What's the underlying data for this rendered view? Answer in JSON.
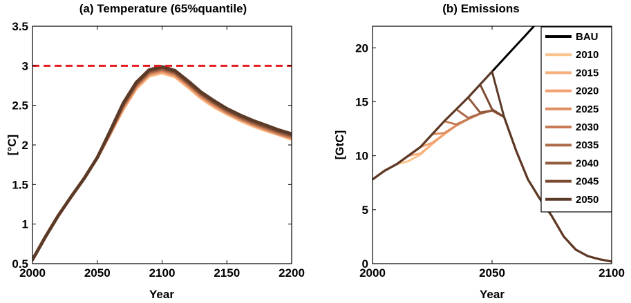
{
  "chart_data": [
    {
      "type": "line",
      "title": "(a) Temperature (65%quantile)",
      "xlabel": "Year",
      "ylabel": "[°C]",
      "xlim": [
        2000,
        2200
      ],
      "ylim": [
        0.5,
        3.5
      ],
      "xticks": [
        "2000",
        "2050",
        "2100",
        "2150",
        "2200"
      ],
      "yticks": [
        "0.5",
        "1",
        "1.5",
        "2",
        "2.5",
        "3",
        "3.5"
      ],
      "grid": false,
      "reference_line": {
        "y": 3,
        "color": "#e8191c",
        "style": "dashed"
      },
      "series": [
        {
          "color": "#fbc48f",
          "x": [
            2000,
            2010,
            2020,
            2030,
            2040,
            2050,
            2060,
            2070,
            2080,
            2090,
            2100,
            2110,
            2120,
            2130,
            2140,
            2150,
            2160,
            2170,
            2180,
            2190,
            2200
          ],
          "y": [
            0.55,
            0.84,
            1.11,
            1.35,
            1.58,
            1.84,
            2.14,
            2.45,
            2.71,
            2.87,
            2.91,
            2.86,
            2.73,
            2.59,
            2.48,
            2.39,
            2.31,
            2.24,
            2.18,
            2.13,
            2.07
          ]
        },
        {
          "color": "#f8b07f",
          "x": [
            2000,
            2010,
            2020,
            2030,
            2040,
            2050,
            2060,
            2070,
            2080,
            2090,
            2100,
            2110,
            2120,
            2130,
            2140,
            2150,
            2160,
            2170,
            2180,
            2190,
            2200
          ],
          "y": [
            0.55,
            0.84,
            1.11,
            1.35,
            1.58,
            1.84,
            2.14,
            2.46,
            2.72,
            2.88,
            2.92,
            2.87,
            2.74,
            2.6,
            2.49,
            2.4,
            2.32,
            2.25,
            2.19,
            2.13,
            2.08
          ]
        },
        {
          "color": "#f4a070",
          "x": [
            2000,
            2010,
            2020,
            2030,
            2040,
            2050,
            2060,
            2070,
            2080,
            2090,
            2100,
            2110,
            2120,
            2130,
            2140,
            2150,
            2160,
            2170,
            2180,
            2190,
            2200
          ],
          "y": [
            0.55,
            0.84,
            1.11,
            1.35,
            1.58,
            1.84,
            2.15,
            2.47,
            2.73,
            2.89,
            2.93,
            2.88,
            2.75,
            2.61,
            2.5,
            2.41,
            2.33,
            2.26,
            2.2,
            2.14,
            2.09
          ]
        },
        {
          "color": "#de8e62",
          "x": [
            2000,
            2010,
            2020,
            2030,
            2040,
            2050,
            2060,
            2070,
            2080,
            2090,
            2100,
            2110,
            2120,
            2130,
            2140,
            2150,
            2160,
            2170,
            2180,
            2190,
            2200
          ],
          "y": [
            0.55,
            0.84,
            1.11,
            1.35,
            1.58,
            1.84,
            2.15,
            2.48,
            2.74,
            2.9,
            2.94,
            2.89,
            2.76,
            2.62,
            2.51,
            2.41,
            2.33,
            2.26,
            2.2,
            2.14,
            2.09
          ]
        },
        {
          "color": "#c77c56",
          "x": [
            2000,
            2010,
            2020,
            2030,
            2040,
            2050,
            2060,
            2070,
            2080,
            2090,
            2100,
            2110,
            2120,
            2130,
            2140,
            2150,
            2160,
            2170,
            2180,
            2190,
            2200
          ],
          "y": [
            0.55,
            0.84,
            1.11,
            1.35,
            1.58,
            1.84,
            2.16,
            2.49,
            2.75,
            2.91,
            2.95,
            2.9,
            2.77,
            2.63,
            2.52,
            2.42,
            2.34,
            2.27,
            2.21,
            2.15,
            2.1
          ]
        },
        {
          "color": "#ad6a4a",
          "x": [
            2000,
            2010,
            2020,
            2030,
            2040,
            2050,
            2060,
            2070,
            2080,
            2090,
            2100,
            2110,
            2120,
            2130,
            2140,
            2150,
            2160,
            2170,
            2180,
            2190,
            2200
          ],
          "y": [
            0.55,
            0.84,
            1.11,
            1.35,
            1.58,
            1.84,
            2.16,
            2.5,
            2.76,
            2.92,
            2.96,
            2.91,
            2.78,
            2.64,
            2.53,
            2.43,
            2.35,
            2.28,
            2.22,
            2.16,
            2.11
          ]
        },
        {
          "color": "#915a3d",
          "x": [
            2000,
            2010,
            2020,
            2030,
            2040,
            2050,
            2060,
            2070,
            2080,
            2090,
            2100,
            2110,
            2120,
            2130,
            2140,
            2150,
            2160,
            2170,
            2180,
            2190,
            2200
          ],
          "y": [
            0.55,
            0.84,
            1.11,
            1.35,
            1.58,
            1.84,
            2.17,
            2.51,
            2.77,
            2.93,
            2.97,
            2.92,
            2.79,
            2.65,
            2.54,
            2.44,
            2.36,
            2.29,
            2.23,
            2.17,
            2.12
          ]
        },
        {
          "color": "#7a4a31",
          "x": [
            2000,
            2010,
            2020,
            2030,
            2040,
            2050,
            2060,
            2070,
            2080,
            2090,
            2100,
            2110,
            2120,
            2130,
            2140,
            2150,
            2160,
            2170,
            2180,
            2190,
            2200
          ],
          "y": [
            0.55,
            0.84,
            1.11,
            1.35,
            1.58,
            1.84,
            2.17,
            2.52,
            2.78,
            2.94,
            2.98,
            2.93,
            2.8,
            2.66,
            2.55,
            2.45,
            2.37,
            2.3,
            2.24,
            2.18,
            2.13
          ]
        },
        {
          "color": "#5c3a28",
          "x": [
            2000,
            2010,
            2020,
            2030,
            2040,
            2050,
            2060,
            2070,
            2080,
            2090,
            2100,
            2110,
            2120,
            2130,
            2140,
            2150,
            2160,
            2170,
            2180,
            2190,
            2200
          ],
          "y": [
            0.55,
            0.84,
            1.11,
            1.35,
            1.58,
            1.84,
            2.18,
            2.53,
            2.79,
            2.95,
            2.99,
            2.94,
            2.81,
            2.67,
            2.56,
            2.46,
            2.38,
            2.31,
            2.25,
            2.19,
            2.14
          ]
        }
      ]
    },
    {
      "type": "line",
      "title": "(b) Emissions",
      "xlabel": "Year",
      "ylabel": "[GtC]",
      "xlim": [
        2000,
        2100
      ],
      "ylim": [
        0,
        22
      ],
      "xticks": [
        "2000",
        "2050",
        "2100"
      ],
      "yticks": [
        "0",
        "5",
        "10",
        "15",
        "20"
      ],
      "grid": false,
      "legend": "top-right",
      "series": [
        {
          "name": "BAU",
          "color": "#000000",
          "x": [
            2000,
            2005,
            2010,
            2015,
            2020,
            2025,
            2030,
            2035,
            2040,
            2045,
            2050,
            2055,
            2060,
            2065,
            2070
          ],
          "y": [
            7.8,
            8.6,
            9.2,
            10.0,
            10.8,
            12.0,
            13.2,
            14.3,
            15.4,
            16.6,
            17.8,
            19.0,
            20.2,
            21.4,
            22.6
          ]
        },
        {
          "name": "2010",
          "color": "#fbc48f",
          "x": [
            2000,
            2005,
            2010,
            2015,
            2020,
            2025,
            2030,
            2035,
            2040,
            2045,
            2050,
            2055,
            2060,
            2065,
            2070,
            2075,
            2080,
            2085,
            2090,
            2095,
            2100
          ],
          "y": [
            7.8,
            8.6,
            9.2,
            9.5,
            10.1,
            11.1,
            12.0,
            12.8,
            13.4,
            13.9,
            14.2,
            13.6,
            10.5,
            7.8,
            6.0,
            4.4,
            2.5,
            1.3,
            0.7,
            0.4,
            0.2
          ]
        },
        {
          "name": "2015",
          "color": "#f8b07f",
          "x": [
            2000,
            2005,
            2010,
            2015,
            2020,
            2025,
            2030,
            2035,
            2040,
            2045,
            2050,
            2055,
            2060,
            2065,
            2070,
            2075,
            2080,
            2085,
            2090,
            2095,
            2100
          ],
          "y": [
            7.8,
            8.6,
            9.2,
            10.0,
            10.2,
            11.1,
            12.0,
            12.8,
            13.4,
            13.9,
            14.2,
            13.6,
            10.5,
            7.8,
            6.0,
            4.4,
            2.5,
            1.3,
            0.7,
            0.4,
            0.2
          ]
        },
        {
          "name": "2020",
          "color": "#f4a070",
          "x": [
            2000,
            2005,
            2010,
            2015,
            2020,
            2025,
            2030,
            2035,
            2040,
            2045,
            2050,
            2055,
            2060,
            2065,
            2070,
            2075,
            2080,
            2085,
            2090,
            2095,
            2100
          ],
          "y": [
            7.8,
            8.6,
            9.2,
            10.0,
            10.8,
            11.2,
            12.0,
            12.8,
            13.4,
            13.9,
            14.2,
            13.6,
            10.5,
            7.8,
            6.0,
            4.4,
            2.5,
            1.3,
            0.7,
            0.4,
            0.2
          ]
        },
        {
          "name": "2025",
          "color": "#de8e62",
          "x": [
            2000,
            2005,
            2010,
            2015,
            2020,
            2025,
            2030,
            2035,
            2040,
            2045,
            2050,
            2055,
            2060,
            2065,
            2070,
            2075,
            2080,
            2085,
            2090,
            2095,
            2100
          ],
          "y": [
            7.8,
            8.6,
            9.2,
            10.0,
            10.8,
            12.0,
            12.1,
            12.8,
            13.4,
            13.9,
            14.2,
            13.6,
            10.5,
            7.8,
            6.0,
            4.4,
            2.5,
            1.3,
            0.7,
            0.4,
            0.2
          ]
        },
        {
          "name": "2030",
          "color": "#c77c56",
          "x": [
            2000,
            2005,
            2010,
            2015,
            2020,
            2025,
            2030,
            2035,
            2040,
            2045,
            2050,
            2055,
            2060,
            2065,
            2070,
            2075,
            2080,
            2085,
            2090,
            2095,
            2100
          ],
          "y": [
            7.8,
            8.6,
            9.2,
            10.0,
            10.8,
            12.0,
            13.2,
            12.9,
            13.4,
            13.9,
            14.2,
            13.6,
            10.5,
            7.8,
            6.0,
            4.4,
            2.5,
            1.3,
            0.7,
            0.4,
            0.2
          ]
        },
        {
          "name": "2035",
          "color": "#ad6a4a",
          "x": [
            2000,
            2005,
            2010,
            2015,
            2020,
            2025,
            2030,
            2035,
            2040,
            2045,
            2050,
            2055,
            2060,
            2065,
            2070,
            2075,
            2080,
            2085,
            2090,
            2095,
            2100
          ],
          "y": [
            7.8,
            8.6,
            9.2,
            10.0,
            10.8,
            12.0,
            13.2,
            14.3,
            13.5,
            13.9,
            14.2,
            13.6,
            10.5,
            7.8,
            6.0,
            4.4,
            2.5,
            1.3,
            0.7,
            0.4,
            0.2
          ]
        },
        {
          "name": "2040",
          "color": "#915a3d",
          "x": [
            2000,
            2005,
            2010,
            2015,
            2020,
            2025,
            2030,
            2035,
            2040,
            2045,
            2050,
            2055,
            2060,
            2065,
            2070,
            2075,
            2080,
            2085,
            2090,
            2095,
            2100
          ],
          "y": [
            7.8,
            8.6,
            9.2,
            10.0,
            10.8,
            12.0,
            13.2,
            14.3,
            15.4,
            14.0,
            14.2,
            13.6,
            10.5,
            7.8,
            6.0,
            4.4,
            2.5,
            1.3,
            0.7,
            0.4,
            0.2
          ]
        },
        {
          "name": "2045",
          "color": "#7a4a31",
          "x": [
            2000,
            2005,
            2010,
            2015,
            2020,
            2025,
            2030,
            2035,
            2040,
            2045,
            2050,
            2055,
            2060,
            2065,
            2070,
            2075,
            2080,
            2085,
            2090,
            2095,
            2100
          ],
          "y": [
            7.8,
            8.6,
            9.2,
            10.0,
            10.8,
            12.0,
            13.2,
            14.3,
            15.4,
            16.6,
            14.3,
            13.6,
            10.5,
            7.8,
            6.0,
            4.4,
            2.5,
            1.3,
            0.7,
            0.4,
            0.2
          ]
        },
        {
          "name": "2050",
          "color": "#5c3a28",
          "x": [
            2000,
            2005,
            2010,
            2015,
            2020,
            2025,
            2030,
            2035,
            2040,
            2045,
            2050,
            2055,
            2060,
            2065,
            2070,
            2075,
            2080,
            2085,
            2090,
            2095,
            2100
          ],
          "y": [
            7.8,
            8.6,
            9.2,
            10.0,
            10.8,
            12.0,
            13.2,
            14.3,
            15.4,
            16.6,
            17.8,
            13.6,
            10.5,
            7.8,
            6.0,
            4.4,
            2.5,
            1.3,
            0.7,
            0.4,
            0.2
          ]
        }
      ]
    }
  ]
}
